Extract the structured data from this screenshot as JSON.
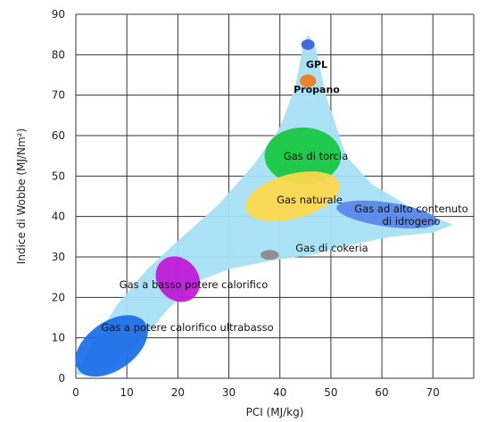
{
  "chart_data": {
    "type": "scatter",
    "xlabel": "PCI (MJ/kg)",
    "ylabel": "Indice di Wobbe (MJ/Nm²)",
    "xlim": [
      0,
      78
    ],
    "ylim": [
      0,
      90
    ],
    "x_ticks": [
      0,
      10,
      20,
      30,
      40,
      50,
      60,
      70
    ],
    "y_ticks": [
      0,
      10,
      20,
      30,
      40,
      50,
      60,
      70,
      80,
      90
    ],
    "grid": true,
    "colors": {
      "envelope": "#a8e0f5",
      "gpl": "#3a5fd9",
      "propano": "#f07a1a",
      "torcia": "#13c63c",
      "naturale": "#ffd84a",
      "alto_idrogeno": "#5a86e8",
      "cokeria": "#8a8a8a",
      "basso_potere": "#c015d6",
      "ultrabasso": "#1a6de8"
    },
    "regions": [
      {
        "label": "GPL",
        "x": 45.5,
        "y": 82.5,
        "rx": 1.3,
        "ry": 1.3,
        "color_key": "gpl",
        "bold": true
      },
      {
        "label": "Propano",
        "x": 45.5,
        "y": 73.5,
        "rx": 1.6,
        "ry": 1.6,
        "color_key": "propano",
        "bold": true
      },
      {
        "label": "Gas di torcia",
        "x": 44.5,
        "y": 55,
        "rx": 7.5,
        "ry": 7,
        "color_key": "torcia",
        "bold": false
      },
      {
        "label": "Gas naturale",
        "x": 42.5,
        "y": 45,
        "rx": 9.5,
        "ry": 5.5,
        "color_key": "naturale",
        "bold": false
      },
      {
        "label": "Gas ad alto contenuto",
        "label2": "di idrogeno",
        "x": 61,
        "y": 40.5,
        "rx": 10,
        "ry": 3,
        "color_key": "alto_idrogeno",
        "bold": false
      },
      {
        "label": "Gas di cokeria",
        "x": 38,
        "y": 30.5,
        "rx": 1.8,
        "ry": 1.2,
        "color_key": "cokeria",
        "bold": false
      },
      {
        "label": "Gas a basso potere calorifico",
        "x": 20,
        "y": 24.5,
        "rx": 4,
        "ry": 6,
        "color_key": "basso_potere",
        "bold": false
      },
      {
        "label": "Gas a potere calorifico ultrabasso",
        "x": 7,
        "y": 8,
        "rx": 8,
        "ry": 6,
        "color_key": "ultrabasso",
        "bold": false
      }
    ],
    "envelope": [
      [
        0,
        1
      ],
      [
        3,
        8
      ],
      [
        8,
        18
      ],
      [
        14,
        27
      ],
      [
        20,
        34
      ],
      [
        28,
        43
      ],
      [
        35,
        53
      ],
      [
        40,
        62
      ],
      [
        43,
        72
      ],
      [
        44.5,
        82
      ],
      [
        45.5,
        85
      ],
      [
        47,
        82
      ],
      [
        49,
        70
      ],
      [
        53,
        55
      ],
      [
        58,
        48
      ],
      [
        66,
        42
      ],
      [
        74,
        38
      ],
      [
        70,
        36
      ],
      [
        62,
        35
      ],
      [
        54,
        33
      ],
      [
        46,
        30.5
      ],
      [
        38,
        29
      ],
      [
        30,
        27
      ],
      [
        24,
        24
      ],
      [
        18,
        17
      ],
      [
        12,
        8
      ],
      [
        7,
        2.5
      ],
      [
        4,
        0.5
      ],
      [
        0,
        1
      ]
    ]
  }
}
